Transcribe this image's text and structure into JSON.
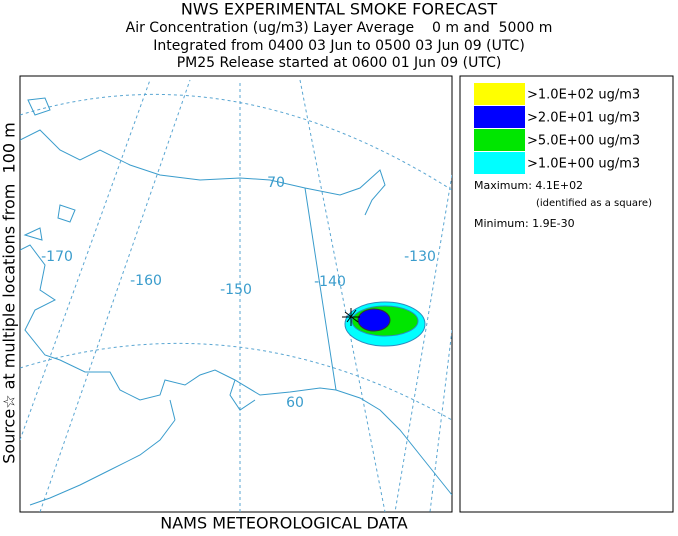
{
  "header": {
    "title": "NWS EXPERIMENTAL SMOKE FORECAST",
    "lines": [
      "Air Concentration (ug/m3) Layer Average    0 m and  5000 m",
      "Integrated from 0400 03 Jun to 0500 03 Jun 09 (UTC)",
      "PM25 Release started at 0600 01 Jun 09 (UTC)"
    ]
  },
  "side_label": "Source☆ at multiple locations from  100 m",
  "footer": "NAMS METEOROLOGICAL DATA",
  "legend": {
    "items": [
      {
        "label": ">1.0E+02 ug/m3",
        "color": "#ffff00"
      },
      {
        "label": ">2.0E+01 ug/m3",
        "color": "#0000ff"
      },
      {
        "label": ">5.0E+00 ug/m3",
        "color": "#00e600"
      },
      {
        "label": ">1.0E+00 ug/m3",
        "color": "#00ffff"
      }
    ],
    "maximum": "Maximum: 4.1E+02",
    "maximum_note": "(identified as a square)",
    "minimum": "Minimum: 1.9E-30"
  },
  "map": {
    "longitude_labels": [
      "-170",
      "-160",
      "-150",
      "-140",
      "-130"
    ],
    "latitude_labels": [
      "70",
      "60"
    ]
  }
}
